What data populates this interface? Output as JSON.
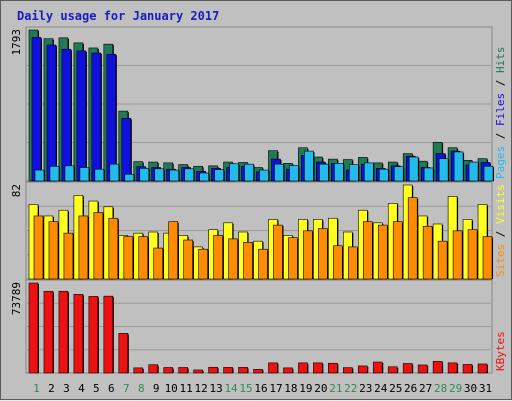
{
  "chart_data": {
    "type": "bar",
    "title": "Daily usage for January 2017",
    "x": [
      "1",
      "2",
      "3",
      "4",
      "5",
      "6",
      "7",
      "8",
      "9",
      "10",
      "11",
      "12",
      "13",
      "14",
      "15",
      "16",
      "17",
      "18",
      "19",
      "20",
      "21",
      "22",
      "23",
      "24",
      "25",
      "26",
      "27",
      "28",
      "29",
      "30",
      "31"
    ],
    "weekend_days": [
      "1",
      "7",
      "8",
      "14",
      "15",
      "21",
      "22",
      "28",
      "29"
    ],
    "colors": {
      "hits": "#1f7a55",
      "files": "#1111dd",
      "pages": "#22bbee",
      "visits": "#ffff20",
      "sites": "#ff8c00",
      "kbytes": "#ee1111",
      "weekday_tick": "#000000",
      "weekend_tick": "#2e8b57",
      "title": "#1b1bc2"
    },
    "panels": [
      {
        "max_label": "1793",
        "ymax": 1793,
        "legend": [
          {
            "text": "Pages",
            "color": "#22bbee"
          },
          {
            "text": " / ",
            "color": "#000000"
          },
          {
            "text": "Files",
            "color": "#1111dd"
          },
          {
            "text": " / ",
            "color": "#000000"
          },
          {
            "text": "Hits",
            "color": "#1f7a55"
          }
        ],
        "series": [
          {
            "name": "Hits",
            "color": "#1f7a55",
            "values": [
              1793,
              1690,
              1700,
              1640,
              1580,
              1625,
              830,
              230,
              225,
              215,
              195,
              175,
              180,
              225,
              220,
              160,
              360,
              210,
              395,
              285,
              260,
              255,
              280,
              215,
              225,
              325,
              235,
              460,
              395,
              245,
              265
            ]
          },
          {
            "name": "Files",
            "color": "#1111dd",
            "values": [
              1705,
              1615,
              1565,
              1545,
              1520,
              1505,
              745,
              170,
              160,
              140,
              160,
              115,
              150,
              160,
              175,
              110,
              260,
              140,
              305,
              225,
              210,
              130,
              200,
              150,
              180,
              295,
              160,
              325,
              355,
              190,
              220
            ]
          },
          {
            "name": "Pages",
            "color": "#22bbee",
            "values": [
              130,
              175,
              180,
              160,
              140,
              200,
              80,
              150,
              145,
              130,
              145,
              95,
              135,
              205,
              200,
              130,
              200,
              185,
              355,
              200,
              210,
              195,
              215,
              140,
              170,
              285,
              155,
              265,
              345,
              225,
              175
            ]
          }
        ]
      },
      {
        "max_label": "82",
        "ymax": 82,
        "legend": [
          {
            "text": "Sites",
            "color": "#ff8c00"
          },
          {
            "text": " / ",
            "color": "#000000"
          },
          {
            "text": "Visits",
            "color": "#ffff20"
          }
        ],
        "series": [
          {
            "name": "Visits",
            "color": "#ffff20",
            "values": [
              65,
              55,
              60,
              73,
              68,
              63,
              38,
              40,
              41,
              40,
              38,
              28,
              43,
              49,
              41,
              33,
              52,
              38,
              52,
              52,
              53,
              41,
              60,
              49,
              66,
              82,
              55,
              48,
              72,
              52,
              65
            ]
          },
          {
            "name": "Sites",
            "color": "#ff8c00",
            "values": [
              55,
              50,
              40,
              55,
              58,
              53,
              37,
              37,
              27,
              50,
              34,
              26,
              38,
              35,
              32,
              26,
              47,
              36,
              42,
              44,
              29,
              28,
              50,
              47,
              50,
              71,
              46,
              33,
              42,
              43,
              37
            ]
          }
        ]
      },
      {
        "max_label": "73789",
        "ymax": 73789,
        "legend": [
          {
            "text": "KBytes",
            "color": "#ee1111"
          }
        ],
        "series": [
          {
            "name": "KBytes",
            "color": "#ee1111",
            "values": [
              73789,
              67000,
              67000,
              64500,
              62800,
              63000,
              32500,
              4200,
              6800,
              4500,
              4500,
              2500,
              4700,
              4600,
              4600,
              3000,
              8300,
              4200,
              8300,
              8300,
              8000,
              4400,
              5800,
              9000,
              5100,
              7800,
              6600,
              9500,
              8300,
              7000,
              7400
            ]
          }
        ]
      }
    ]
  }
}
